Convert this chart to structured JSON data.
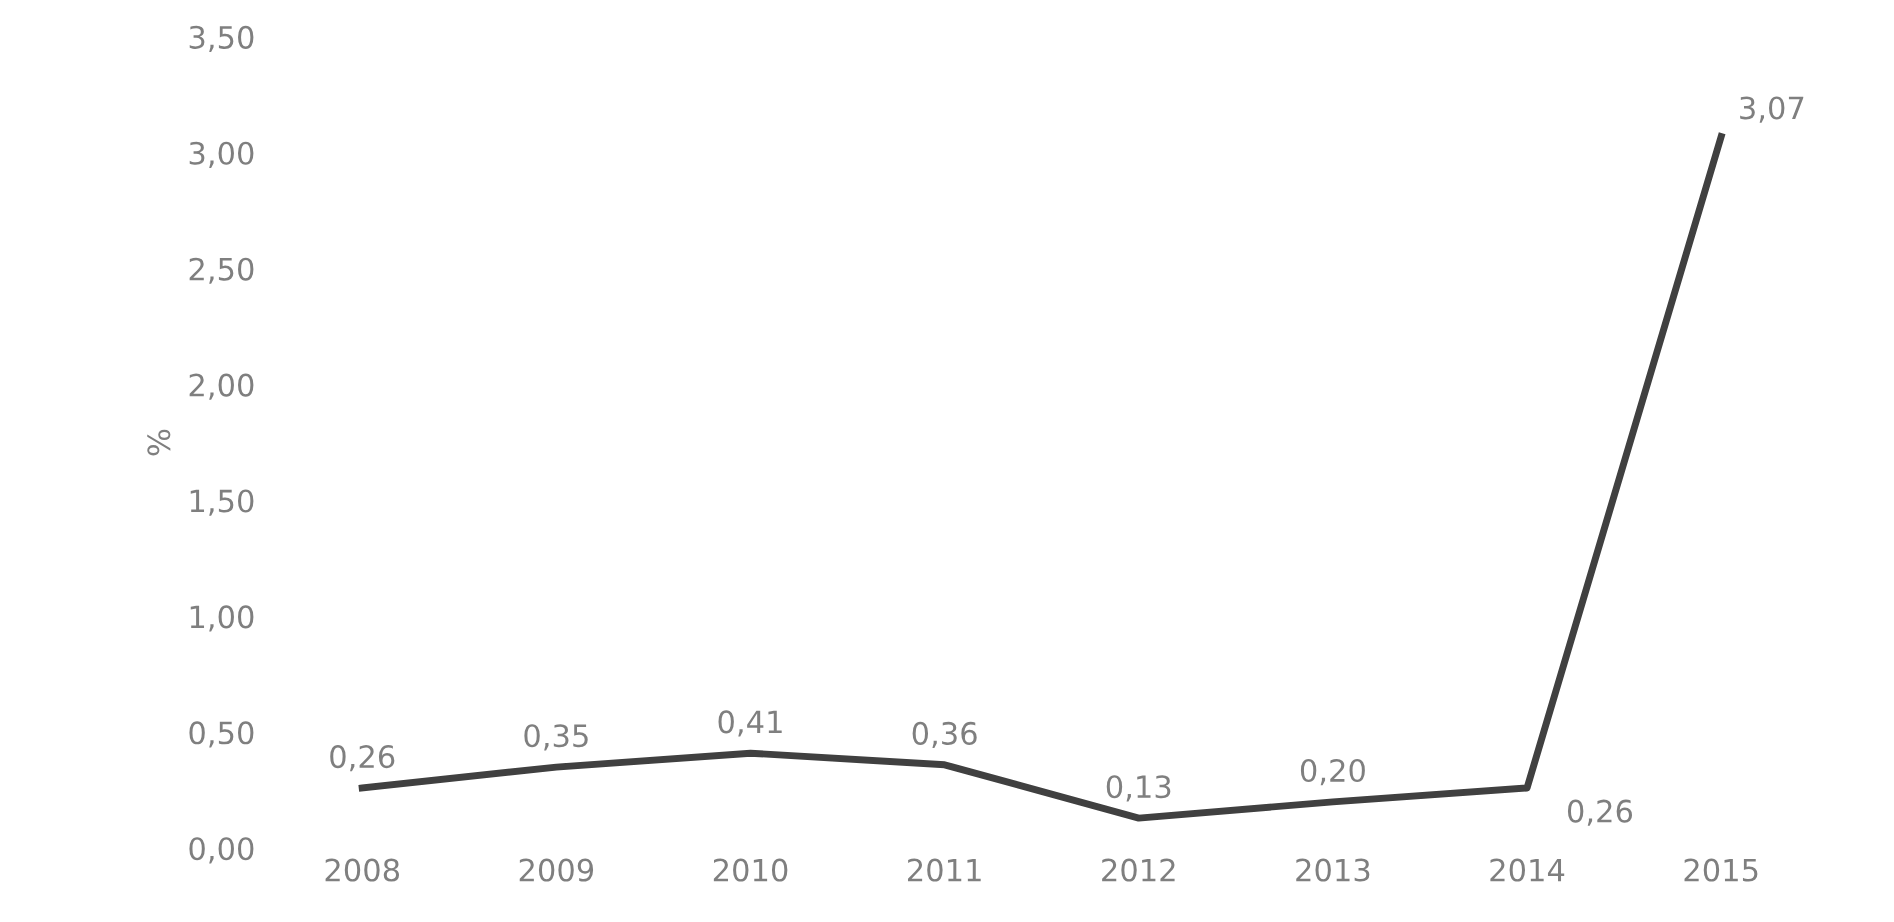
{
  "chart_data": {
    "type": "line",
    "ylabel": "%",
    "categories": [
      "2008",
      "2009",
      "2010",
      "2011",
      "2012",
      "2013",
      "2014",
      "2015"
    ],
    "values": [
      0.26,
      0.35,
      0.41,
      0.36,
      0.13,
      0.2,
      0.26,
      3.07
    ],
    "color": "#404040",
    "value_labels": [
      "0,26",
      "0,35",
      "0,41",
      "0,36",
      "0,13",
      "0,20",
      "0,26",
      "3,07"
    ],
    "ylim": [
      0,
      3.5
    ],
    "yticks": [
      {
        "value": 0,
        "label": "0,00"
      },
      {
        "value": 0.5,
        "label": "0,50"
      },
      {
        "value": 1,
        "label": "1,00"
      },
      {
        "value": 1.5,
        "label": "1,50"
      },
      {
        "value": 2,
        "label": "2,00"
      },
      {
        "value": 2.5,
        "label": "2,50"
      },
      {
        "value": 3,
        "label": "3,00"
      },
      {
        "value": 3.5,
        "label": "3,50"
      }
    ],
    "grid": false,
    "legend": false,
    "marker": "none",
    "line_style": "solid"
  }
}
